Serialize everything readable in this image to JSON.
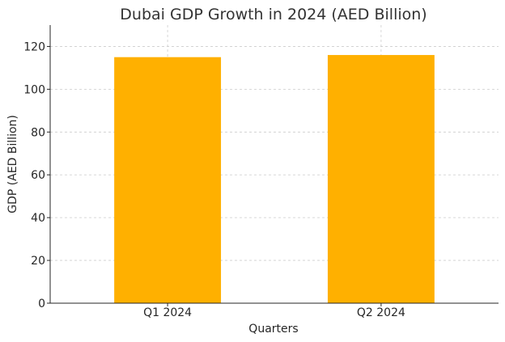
{
  "chart_data": {
    "type": "bar",
    "title": "Dubai GDP Growth in 2024 (AED Billion)",
    "xlabel": "Quarters",
    "ylabel": "GDP (AED Billion)",
    "categories": [
      "Q1 2024",
      "Q2 2024"
    ],
    "values": [
      115,
      116
    ],
    "ylim": [
      0,
      130
    ],
    "yticks": [
      0,
      20,
      40,
      60,
      80,
      100,
      120
    ],
    "grid": true,
    "bar_color": "#ffb000",
    "legend": "none"
  }
}
